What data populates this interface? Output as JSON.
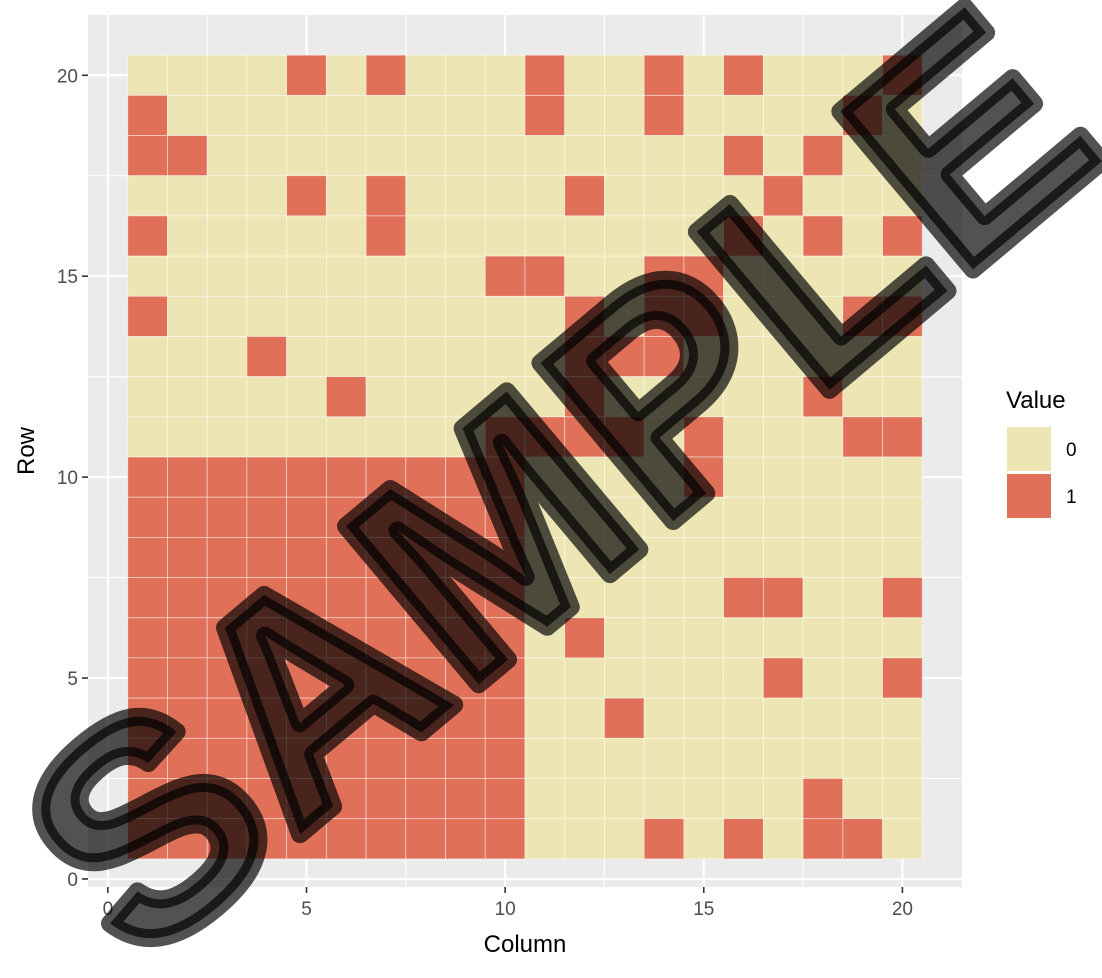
{
  "chart_data": {
    "type": "heatmap",
    "title": "",
    "xlabel": "Column",
    "ylabel": "Row",
    "xlim": [
      -0.5,
      21.5
    ],
    "ylim": [
      -0.2,
      21.5
    ],
    "x_ticks": [
      0,
      5,
      10,
      15,
      20
    ],
    "y_ticks": [
      0,
      5,
      10,
      15,
      20
    ],
    "grid": true,
    "legend": {
      "title": "Value",
      "position": "right",
      "entries": [
        {
          "label": "0",
          "color": "#ede6b4"
        },
        {
          "label": "1",
          "color": "#e07058"
        }
      ]
    },
    "n_rows": 20,
    "n_cols": 20,
    "matrix_rows_top_to_bottom": [
      "00001010001001010001",
      "10000000001001000010",
      "11000000000000010100",
      "00001010000100001000",
      "10000010000000010101",
      "00000000011001100000",
      "10000000000101100011",
      "00010000000111000000",
      "00000100000100000100",
      "00000000011110100011",
      "11111111110000100000",
      "11111111110000000000",
      "11111111110000000000",
      "11111111110000011001",
      "11111111110100000000",
      "11111111110000001001",
      "11111111110010000000",
      "11111111110000000000",
      "11111111110000000100",
      "11111111110001010110"
    ]
  },
  "watermark": {
    "text": "SAMPLE",
    "color": "#000000"
  },
  "colors": {
    "panel": "#ebebeb",
    "grid": "#ffffff",
    "zero": "#ede6b4",
    "one": "#e07058"
  }
}
